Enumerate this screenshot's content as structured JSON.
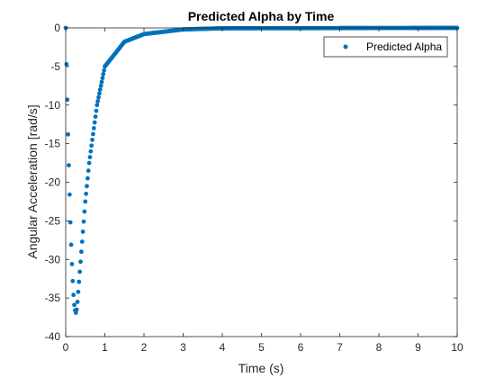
{
  "chart_data": {
    "type": "scatter",
    "title": "Predicted Alpha by Time",
    "xlabel": "Time (s)",
    "ylabel": "Angular Acceleration [rad/s]",
    "xlim": [
      0,
      10
    ],
    "ylim": [
      -40,
      0
    ],
    "xticks": [
      0,
      1,
      2,
      3,
      4,
      5,
      6,
      7,
      8,
      9,
      10
    ],
    "yticks": [
      0,
      -5,
      -10,
      -15,
      -20,
      -25,
      -30,
      -35,
      -40
    ],
    "grid": false,
    "legend_position": "top-right",
    "series": [
      {
        "name": "Predicted Alpha",
        "color": "#0072BD",
        "marker": "dot",
        "model": "alpha(t) = -A * (1 - exp(-t/tau_rise)) * exp(-t/tau_decay), sampled every 0.02 s",
        "sample_step": 0.02,
        "points": [
          [
            0.0,
            0.0
          ],
          [
            0.02,
            -4.7
          ],
          [
            0.04,
            -9.3
          ],
          [
            0.06,
            -13.8
          ],
          [
            0.08,
            -17.8
          ],
          [
            0.1,
            -21.6
          ],
          [
            0.12,
            -25.2
          ],
          [
            0.14,
            -28.1
          ],
          [
            0.16,
            -30.6
          ],
          [
            0.18,
            -32.8
          ],
          [
            0.2,
            -34.6
          ],
          [
            0.22,
            -35.9
          ],
          [
            0.24,
            -36.6
          ],
          [
            0.26,
            -36.9
          ],
          [
            0.28,
            -36.5
          ],
          [
            0.3,
            -35.5
          ],
          [
            0.4,
            -29.0
          ],
          [
            0.5,
            -22.5
          ],
          [
            0.6,
            -17.5
          ],
          [
            0.8,
            -10.0
          ],
          [
            1.0,
            -5.0
          ],
          [
            1.5,
            -1.8
          ],
          [
            2.0,
            -0.8
          ],
          [
            3.0,
            -0.2
          ],
          [
            4.0,
            -0.05
          ],
          [
            10.0,
            0.0
          ]
        ]
      }
    ]
  }
}
